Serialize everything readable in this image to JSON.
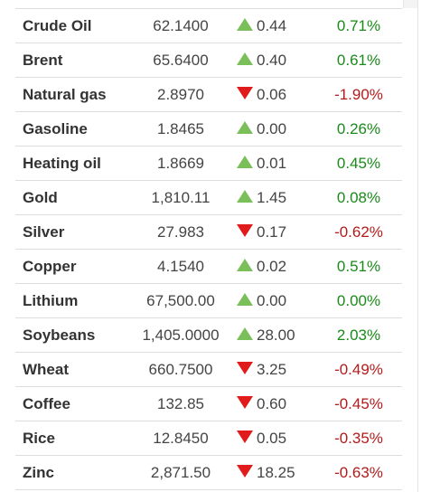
{
  "colors": {
    "up_arrow": "#7bbf5a",
    "down_arrow": "#e11b1b",
    "positive_text": "#1a8a1a",
    "negative_text": "#b31b1b"
  },
  "rows": [
    {
      "name": "Crude Oil",
      "price": "62.1400",
      "direction": "up",
      "change": "0.44",
      "percent": "0.71%"
    },
    {
      "name": "Brent",
      "price": "65.6400",
      "direction": "up",
      "change": "0.40",
      "percent": "0.61%"
    },
    {
      "name": "Natural gas",
      "price": "2.8970",
      "direction": "down",
      "change": "0.06",
      "percent": "-1.90%"
    },
    {
      "name": "Gasoline",
      "price": "1.8465",
      "direction": "up",
      "change": "0.00",
      "percent": "0.26%"
    },
    {
      "name": "Heating oil",
      "price": "1.8669",
      "direction": "up",
      "change": "0.01",
      "percent": "0.45%"
    },
    {
      "name": "Gold",
      "price": "1,810.11",
      "direction": "up",
      "change": "1.45",
      "percent": "0.08%"
    },
    {
      "name": "Silver",
      "price": "27.983",
      "direction": "down",
      "change": "0.17",
      "percent": "-0.62%"
    },
    {
      "name": "Copper",
      "price": "4.1540",
      "direction": "up",
      "change": "0.02",
      "percent": "0.51%"
    },
    {
      "name": "Lithium",
      "price": "67,500.00",
      "direction": "up",
      "change": "0.00",
      "percent": "0.00%"
    },
    {
      "name": "Soybeans",
      "price": "1,405.0000",
      "direction": "up",
      "change": "28.00",
      "percent": "2.03%"
    },
    {
      "name": "Wheat",
      "price": "660.7500",
      "direction": "down",
      "change": "3.25",
      "percent": "-0.49%"
    },
    {
      "name": "Coffee",
      "price": "132.85",
      "direction": "down",
      "change": "0.60",
      "percent": "-0.45%"
    },
    {
      "name": "Rice",
      "price": "12.8450",
      "direction": "down",
      "change": "0.05",
      "percent": "-0.35%"
    },
    {
      "name": "Zinc",
      "price": "2,871.50",
      "direction": "down",
      "change": "18.25",
      "percent": "-0.63%"
    }
  ]
}
